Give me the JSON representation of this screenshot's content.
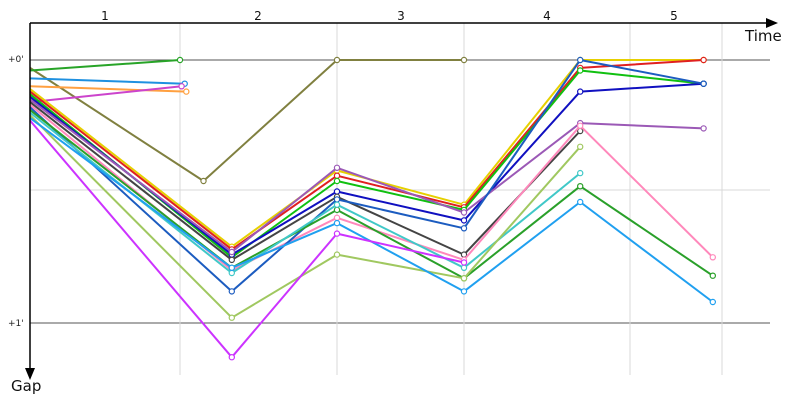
{
  "chart_data": {
    "type": "line",
    "x_axis_label": "Time",
    "y_axis_label": "Gap",
    "lap_labels": [
      "1",
      "2",
      "3",
      "4",
      "5"
    ],
    "gap_ticks": [
      "+0'",
      "+1'"
    ],
    "ylim": [
      0,
      1.2
    ],
    "grid": true,
    "y_direction": "down",
    "note": "Lap-chart of gaps to leader over time; x is elapsed time (lap boundaries at 180, 337, 464, 630, 722 px-equivalent ordinal positions rendered by script), y is gap in minutes increasing downward. Series are unnamed.",
    "lap_boundaries": [
      1.0,
      2.0,
      3.0,
      4.0,
      5.0
    ],
    "series": [
      {
        "color": "#808040",
        "points": [
          [
            0.0,
            0.03
          ],
          [
            1.15,
            0.46
          ],
          [
            2.0,
            0.0
          ],
          [
            3.0,
            0.0
          ]
        ]
      },
      {
        "color": "#28a428",
        "points": [
          [
            0.0,
            0.04
          ],
          [
            1.0,
            0.0
          ]
        ]
      },
      {
        "color": "#1e90e0",
        "points": [
          [
            0.0,
            0.07
          ],
          [
            1.03,
            0.09
          ]
        ]
      },
      {
        "color": "#ffa040",
        "points": [
          [
            0.0,
            0.1
          ],
          [
            1.04,
            0.12
          ]
        ]
      },
      {
        "color": "#cc44cc",
        "points": [
          [
            0.0,
            0.16
          ],
          [
            1.01,
            0.1
          ]
        ]
      },
      {
        "color": "#e6d000",
        "points": [
          [
            0.0,
            0.11
          ],
          [
            1.33,
            0.71
          ],
          [
            2.0,
            0.42
          ],
          [
            3.0,
            0.55
          ],
          [
            3.7,
            0.0
          ],
          [
            4.8,
            0.0
          ]
        ]
      },
      {
        "color": "#e02020",
        "points": [
          [
            0.0,
            0.12
          ],
          [
            1.33,
            0.72
          ],
          [
            2.0,
            0.44
          ],
          [
            3.0,
            0.56
          ],
          [
            3.7,
            0.03
          ],
          [
            4.8,
            0.0
          ]
        ]
      },
      {
        "color": "#10c010",
        "points": [
          [
            0.0,
            0.13
          ],
          [
            1.33,
            0.75
          ],
          [
            2.0,
            0.46
          ],
          [
            3.0,
            0.57
          ],
          [
            3.7,
            0.04
          ],
          [
            4.8,
            0.09
          ]
        ]
      },
      {
        "color": "#1010c0",
        "points": [
          [
            0.0,
            0.14
          ],
          [
            1.33,
            0.74
          ],
          [
            2.0,
            0.5
          ],
          [
            3.0,
            0.61
          ],
          [
            3.7,
            0.12
          ],
          [
            4.8,
            0.09
          ]
        ]
      },
      {
        "color": "#9b59b6",
        "points": [
          [
            0.0,
            0.15
          ],
          [
            1.33,
            0.73
          ],
          [
            2.0,
            0.41
          ],
          [
            3.0,
            0.58
          ],
          [
            3.7,
            0.24
          ],
          [
            4.8,
            0.26
          ]
        ]
      },
      {
        "color": "#444444",
        "points": [
          [
            0.0,
            0.16
          ],
          [
            1.33,
            0.76
          ],
          [
            2.0,
            0.52
          ],
          [
            3.0,
            0.74
          ],
          [
            3.7,
            0.27
          ]
        ]
      },
      {
        "color": "#ff88bb",
        "points": [
          [
            0.0,
            0.17
          ],
          [
            1.33,
            0.8
          ],
          [
            2.0,
            0.6
          ],
          [
            3.0,
            0.76
          ],
          [
            3.7,
            0.25
          ],
          [
            4.9,
            0.75
          ]
        ]
      },
      {
        "color": "#1c5cc0",
        "points": [
          [
            0.0,
            0.18
          ],
          [
            1.33,
            0.88
          ],
          [
            2.0,
            0.53
          ],
          [
            3.0,
            0.64
          ],
          [
            3.7,
            0.0
          ],
          [
            4.8,
            0.09
          ]
        ]
      },
      {
        "color": "#2aa02a",
        "points": [
          [
            0.0,
            0.19
          ],
          [
            1.33,
            0.79
          ],
          [
            2.0,
            0.57
          ],
          [
            3.0,
            0.83
          ],
          [
            3.7,
            0.48
          ],
          [
            4.9,
            0.82
          ]
        ]
      },
      {
        "color": "#40c8c8",
        "points": [
          [
            0.0,
            0.2
          ],
          [
            1.33,
            0.81
          ],
          [
            2.0,
            0.55
          ],
          [
            3.0,
            0.79
          ],
          [
            3.7,
            0.43
          ]
        ]
      },
      {
        "color": "#a0c860",
        "points": [
          [
            0.0,
            0.21
          ],
          [
            1.33,
            0.98
          ],
          [
            2.0,
            0.74
          ],
          [
            3.0,
            0.83
          ],
          [
            3.7,
            0.33
          ]
        ]
      },
      {
        "color": "#20a0f0",
        "points": [
          [
            0.0,
            0.22
          ],
          [
            1.33,
            0.79
          ],
          [
            2.0,
            0.62
          ],
          [
            3.0,
            0.88
          ],
          [
            3.7,
            0.54
          ],
          [
            4.9,
            0.92
          ]
        ]
      },
      {
        "color": "#cc33ff",
        "points": [
          [
            0.0,
            0.23
          ],
          [
            1.33,
            1.13
          ],
          [
            2.0,
            0.66
          ],
          [
            3.0,
            0.77
          ]
        ]
      }
    ]
  }
}
